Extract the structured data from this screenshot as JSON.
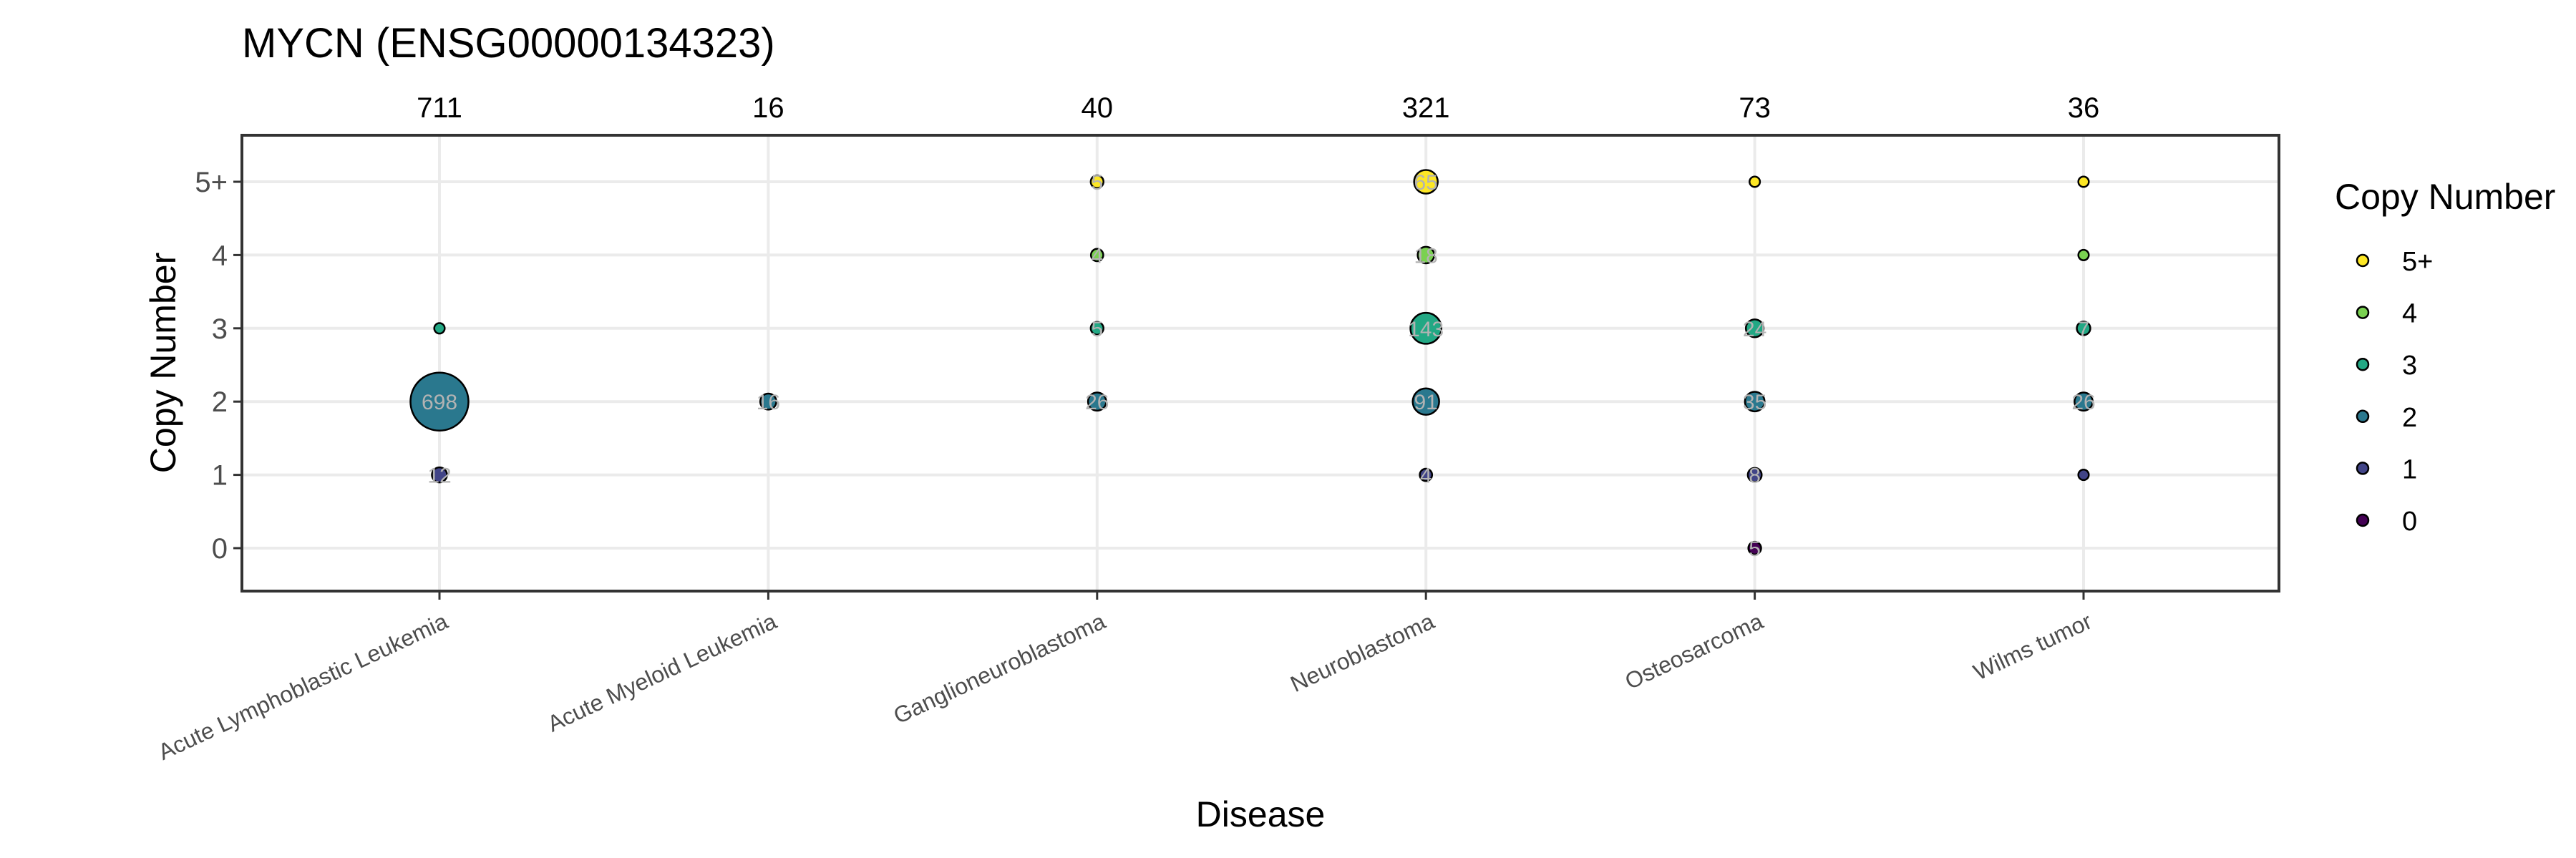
{
  "chart_data": {
    "type": "scatter",
    "title": "MYCN (ENSG00000134323)",
    "xlabel": "Disease",
    "ylabel": "Copy Number",
    "legend_title": "Copy Number",
    "legend_position": "right",
    "grid": true,
    "categories": [
      "Acute Lymphoblastic Leukemia",
      "Acute Myeloid Leukemia",
      "Ganglioneuroblastoma",
      "Neuroblastoma",
      "Osteosarcoma",
      "Wilms tumor"
    ],
    "totals": [
      "711",
      "16",
      "40",
      "321",
      "73",
      "36"
    ],
    "y_levels": [
      "0",
      "1",
      "2",
      "3",
      "4",
      "5+"
    ],
    "colors": {
      "0": "#440154",
      "1": "#414487",
      "2": "#2A788E",
      "3": "#22A884",
      "4": "#7AD151",
      "5+": "#FDE725"
    },
    "points": [
      {
        "disease": "Acute Lymphoblastic Leukemia",
        "cn": "3",
        "count": 1
      },
      {
        "disease": "Acute Lymphoblastic Leukemia",
        "cn": "2",
        "count": 698,
        "label": "698"
      },
      {
        "disease": "Acute Lymphoblastic Leukemia",
        "cn": "1",
        "count": 12,
        "label": "12"
      },
      {
        "disease": "Acute Myeloid Leukemia",
        "cn": "2",
        "count": 16,
        "label": "16"
      },
      {
        "disease": "Ganglioneuroblastoma",
        "cn": "5+",
        "count": 5,
        "label": "5"
      },
      {
        "disease": "Ganglioneuroblastoma",
        "cn": "4",
        "count": 4,
        "label": "4"
      },
      {
        "disease": "Ganglioneuroblastoma",
        "cn": "3",
        "count": 5,
        "label": "5"
      },
      {
        "disease": "Ganglioneuroblastoma",
        "cn": "2",
        "count": 26,
        "label": "26"
      },
      {
        "disease": "Neuroblastoma",
        "cn": "5+",
        "count": 65,
        "label": "65"
      },
      {
        "disease": "Neuroblastoma",
        "cn": "4",
        "count": 18,
        "label": "18"
      },
      {
        "disease": "Neuroblastoma",
        "cn": "3",
        "count": 143,
        "label": "143"
      },
      {
        "disease": "Neuroblastoma",
        "cn": "2",
        "count": 91,
        "label": "91"
      },
      {
        "disease": "Neuroblastoma",
        "cn": "1",
        "count": 4,
        "label": "4"
      },
      {
        "disease": "Osteosarcoma",
        "cn": "5+",
        "count": 1
      },
      {
        "disease": "Osteosarcoma",
        "cn": "3",
        "count": 24,
        "label": "24"
      },
      {
        "disease": "Osteosarcoma",
        "cn": "2",
        "count": 35,
        "label": "35"
      },
      {
        "disease": "Osteosarcoma",
        "cn": "1",
        "count": 8,
        "label": "8"
      },
      {
        "disease": "Osteosarcoma",
        "cn": "0",
        "count": 5,
        "label": "5"
      },
      {
        "disease": "Wilms tumor",
        "cn": "5+",
        "count": 1
      },
      {
        "disease": "Wilms tumor",
        "cn": "4",
        "count": 1
      },
      {
        "disease": "Wilms tumor",
        "cn": "3",
        "count": 7,
        "label": "7"
      },
      {
        "disease": "Wilms tumor",
        "cn": "2",
        "count": 26,
        "label": "26"
      },
      {
        "disease": "Wilms tumor",
        "cn": "1",
        "count": 1
      }
    ],
    "legend": [
      "5+",
      "4",
      "3",
      "2",
      "1",
      "0"
    ]
  }
}
